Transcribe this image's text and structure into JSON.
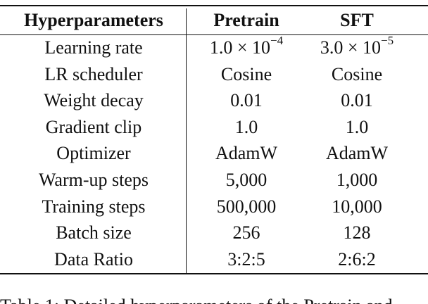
{
  "table": {
    "header": [
      "Hyperparameters",
      "Pretrain",
      "SFT"
    ],
    "rows": [
      [
        "Learning rate",
        {
          "base": "1.0 × 10",
          "exp": "−4"
        },
        {
          "base": "3.0 × 10",
          "exp": "−5"
        }
      ],
      [
        "LR scheduler",
        "Cosine",
        "Cosine"
      ],
      [
        "Weight decay",
        "0.01",
        "0.01"
      ],
      [
        "Gradient clip",
        "1.0",
        "1.0"
      ],
      [
        "Optimizer",
        "AdamW",
        "AdamW"
      ],
      [
        "Warm-up steps",
        "5,000",
        "1,000"
      ],
      [
        "Training steps",
        "500,000",
        "10,000"
      ],
      [
        "Batch size",
        "256",
        "128"
      ],
      [
        "Data Ratio",
        "3:2:5",
        "2:6:2"
      ]
    ]
  },
  "caption": "Table 1:  Detailed hyperparameters of the Pretrain and"
}
